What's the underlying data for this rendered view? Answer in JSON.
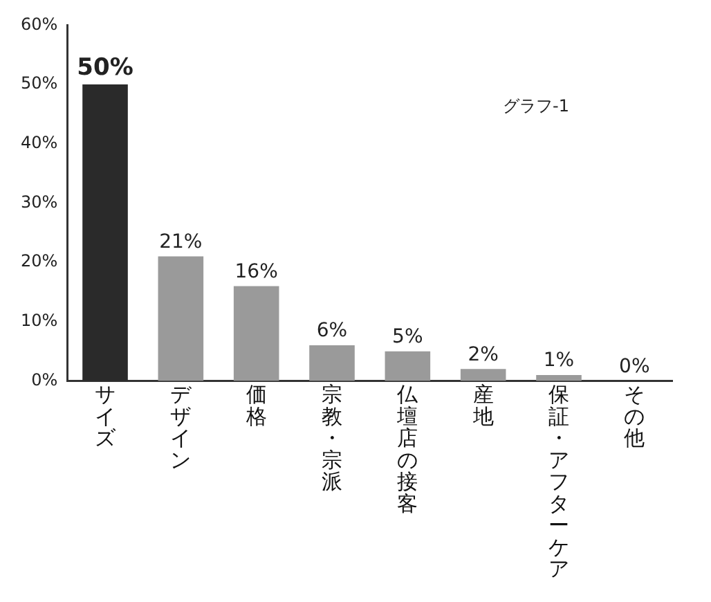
{
  "chart_data": {
    "type": "bar",
    "categories": [
      "サイズ",
      "デザイン",
      "価格",
      "宗教・宗派",
      "仏壇店の接客",
      "産地",
      "保証・アフターケア",
      "その他"
    ],
    "values": [
      50,
      21,
      16,
      6,
      5,
      2,
      1,
      0
    ],
    "value_labels": [
      "50%",
      "21%",
      "16%",
      "6%",
      "5%",
      "2%",
      "1%",
      "0%"
    ],
    "colors": [
      "#2a2a2a",
      "#9a9a9a",
      "#9a9a9a",
      "#9a9a9a",
      "#9a9a9a",
      "#9a9a9a",
      "#9a9a9a",
      "#9a9a9a"
    ],
    "ylim": [
      0,
      60
    ],
    "yticks": [
      {
        "value": 0,
        "label": "0%"
      },
      {
        "value": 10,
        "label": "10%"
      },
      {
        "value": 20,
        "label": "20%"
      },
      {
        "value": 30,
        "label": "30%"
      },
      {
        "value": 40,
        "label": "40%"
      },
      {
        "value": 50,
        "label": "50%"
      },
      {
        "value": 60,
        "label": "60%"
      }
    ],
    "annotations": [
      "グラフ-1"
    ],
    "grid": false,
    "legend": false
  }
}
